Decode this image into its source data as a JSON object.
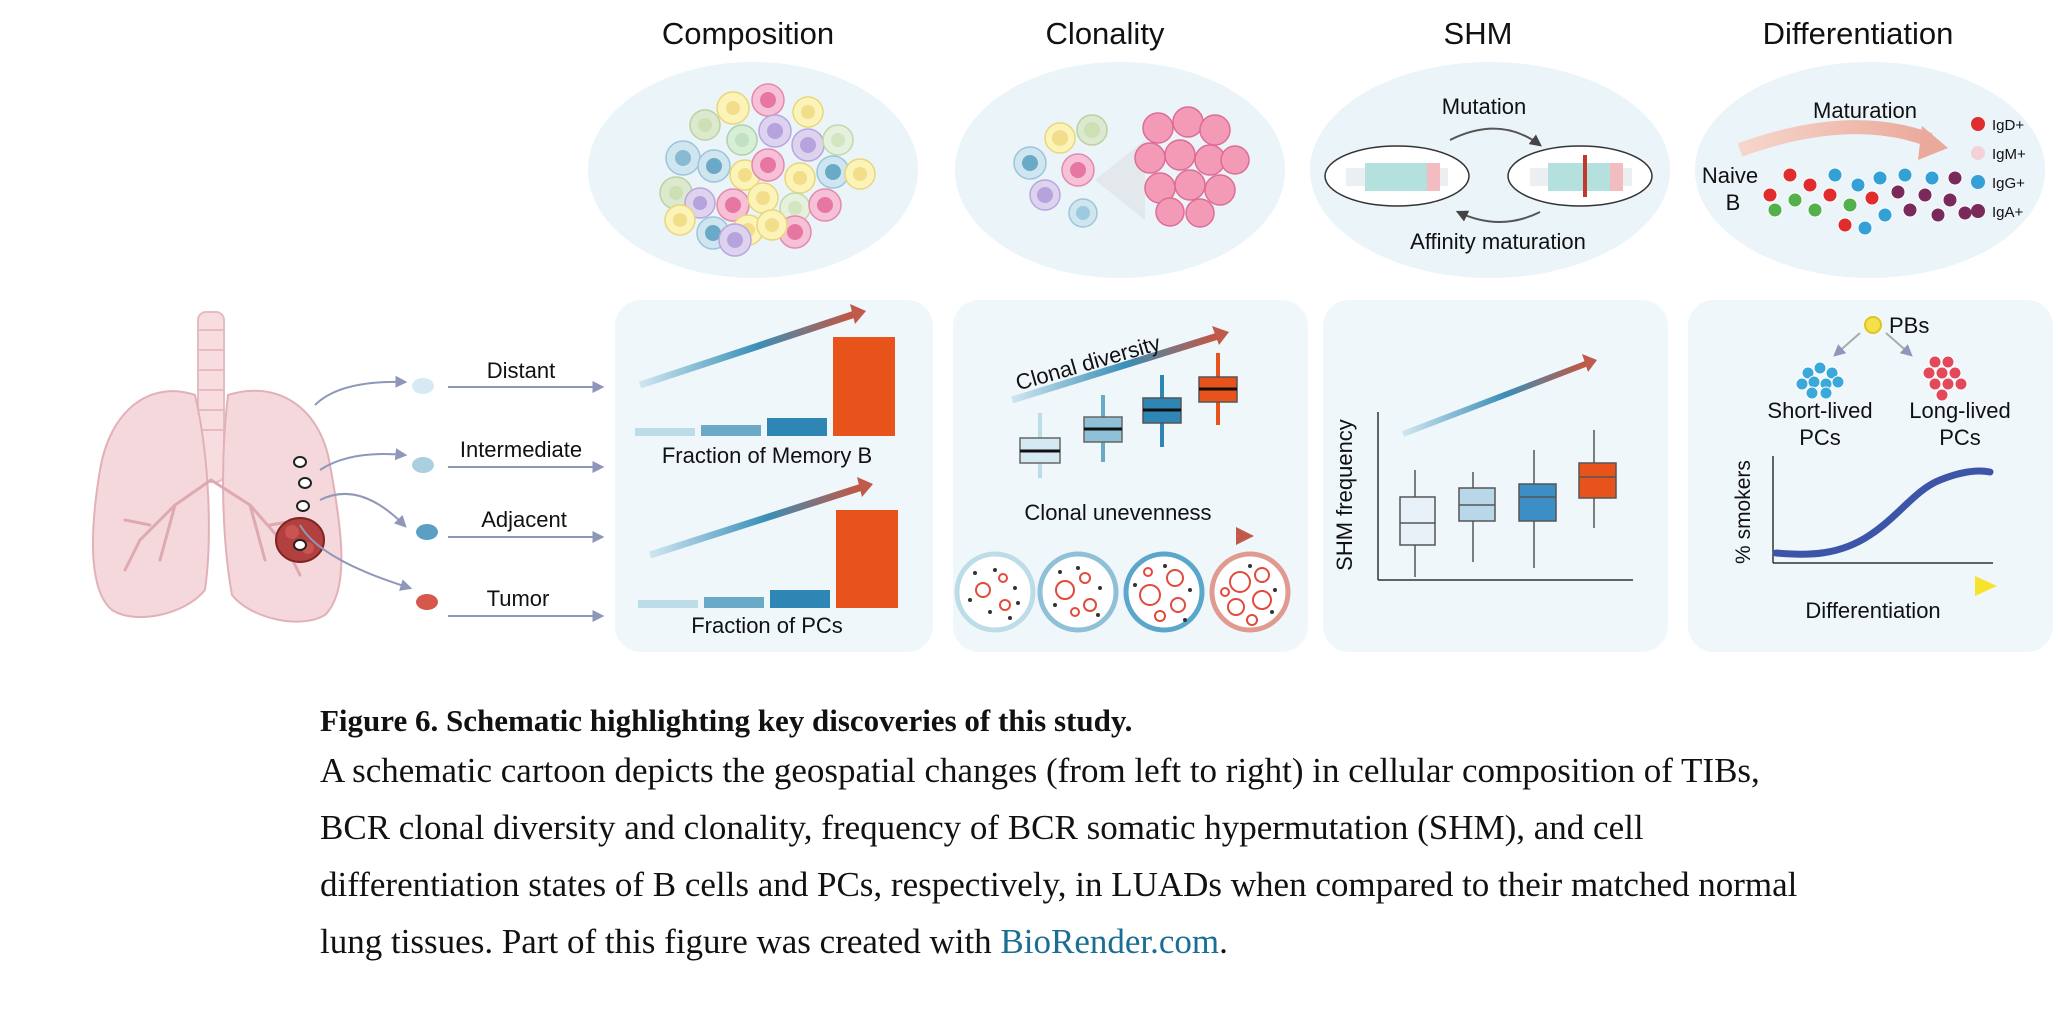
{
  "figure": {
    "panel_titles": {
      "composition": "Composition",
      "clonality": "Clonality",
      "shm": "SHM",
      "differentiation": "Differentiation"
    },
    "regions": [
      "Distant",
      "Intermediate",
      "Adjacent",
      "Tumor"
    ],
    "composition": {
      "memory_b_label": "Fraction of Memory B",
      "pcs_label": "Fraction of PCs"
    },
    "clonality": {
      "diversity_label": "Clonal diversity",
      "unevenness_label": "Clonal unevenness"
    },
    "shm": {
      "mutation_label": "Mutation",
      "affinity_label": "Affinity maturation",
      "y_axis_label": "SHM frequency"
    },
    "differentiation": {
      "maturation_label": "Maturation",
      "naive_line1": "Naive",
      "naive_line2": "B",
      "isotypes": [
        "IgD+",
        "IgM+",
        "IgG+",
        "IgA+"
      ],
      "pbs_label": "PBs",
      "short_lived_line1": "Short-lived",
      "short_lived_line2": "PCs",
      "long_lived_line1": "Long-lived",
      "long_lived_line2": "PCs",
      "y_axis_label": "% smokers",
      "x_axis_label": "Differentiation"
    },
    "colors": {
      "tumor_orange": "#e8531c",
      "light_blue": "#bcdce8",
      "mid_blue": "#6aaac7",
      "dark_blue": "#2d86b4",
      "panel_bg": "#f0f7fb",
      "arrow_red": "#c05a4a",
      "curve_blue": "#3d55a8"
    }
  },
  "caption": {
    "title": "Figure 6. Schematic highlighting key discoveries of this study.",
    "body": "A schematic cartoon depicts the geospatial changes (from left to right) in cellular composition of TIBs, BCR clonal diversity and clonality, frequency of BCR somatic hypermutation (SHM), and cell differentiation states of B cells and PCs, respectively, in LUADs when compared to their matched normal lung tissues. Part of this figure was created with ",
    "link_text": "BioRender.com",
    "end": "."
  }
}
